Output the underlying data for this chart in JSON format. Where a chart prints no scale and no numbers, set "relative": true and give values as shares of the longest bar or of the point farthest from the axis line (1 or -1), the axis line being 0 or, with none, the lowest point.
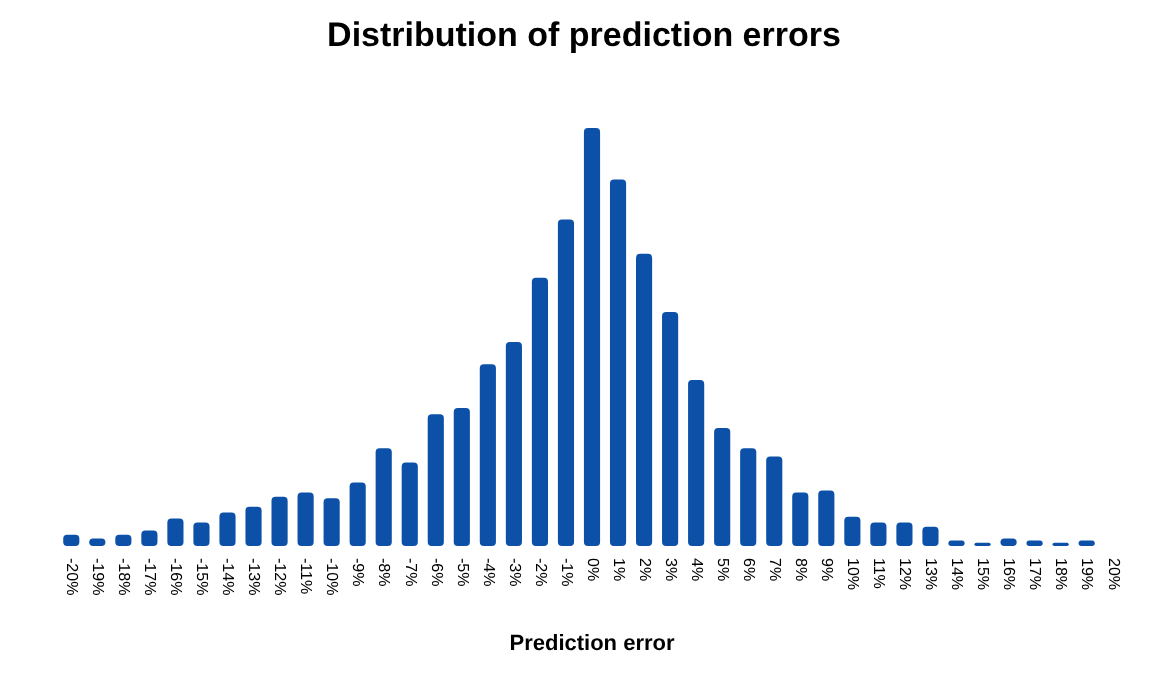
{
  "chart_data": {
    "type": "bar",
    "title": "Distribution of prediction errors",
    "xlabel": "Prediction error",
    "relative": true,
    "color": "#0d50a8",
    "categories": [
      "-20%",
      "-19%",
      "-18%",
      "-17%",
      "-16%",
      "-15%",
      "-14%",
      "-13%",
      "-12%",
      "-11%",
      "-10%",
      "-9%",
      "-8%",
      "-7%",
      "-6%",
      "-5%",
      "-4%",
      "-3%",
      "-2%",
      "-1%",
      "0%",
      "1%",
      "2%",
      "3%",
      "4%",
      "5%",
      "6%",
      "7%",
      "8%",
      "9%",
      "10%",
      "11%",
      "12%",
      "13%",
      "14%",
      "15%",
      "16%",
      "17%",
      "18%",
      "19%",
      "20%"
    ],
    "values": [
      0.027,
      0.018,
      0.027,
      0.037,
      0.066,
      0.056,
      0.08,
      0.094,
      0.118,
      0.128,
      0.114,
      0.152,
      0.234,
      0.2,
      0.315,
      0.33,
      0.435,
      0.488,
      0.642,
      0.781,
      1,
      0.877,
      0.699,
      0.56,
      0.397,
      0.282,
      0.234,
      0.214,
      0.128,
      0.133,
      0.07,
      0.056,
      0.056,
      0.046,
      0.013,
      0.008,
      0.018,
      0.013,
      0.008,
      0.013,
      0
    ]
  }
}
